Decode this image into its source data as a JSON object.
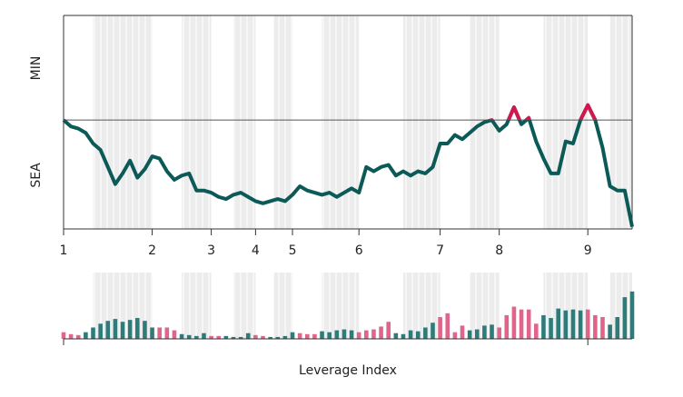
{
  "chart_data": {
    "type": "line",
    "ylabel_top": "MIN",
    "ylabel_bottom": "SEA",
    "xlabel": "Leverage Index",
    "line_color": "#0b5a57",
    "above_color": "#d0184e",
    "reference": 51,
    "xlim": [
      0,
      77
    ],
    "ylim": [
      0,
      100
    ],
    "xticks": [
      {
        "value": 0,
        "label": "1"
      },
      {
        "value": 12,
        "label": "2"
      },
      {
        "value": 20,
        "label": "3"
      },
      {
        "value": 26,
        "label": "4"
      },
      {
        "value": 31,
        "label": "5"
      },
      {
        "value": 40,
        "label": "6"
      },
      {
        "value": 51,
        "label": "7"
      },
      {
        "value": 59,
        "label": "8"
      },
      {
        "value": 71,
        "label": "9"
      }
    ],
    "bands": [
      [
        4,
        12
      ],
      [
        16,
        20
      ],
      [
        23,
        26
      ],
      [
        28.5,
        31
      ],
      [
        35,
        40
      ],
      [
        46,
        51
      ],
      [
        55,
        59
      ],
      [
        65,
        71
      ],
      [
        74,
        77
      ]
    ],
    "values": [
      51,
      48,
      47,
      45,
      40,
      37,
      29,
      21,
      26,
      32,
      24,
      28,
      34,
      33,
      27,
      23,
      25,
      26,
      18,
      18,
      17,
      15,
      14,
      16,
      17,
      15,
      13,
      12,
      13,
      14,
      13,
      16,
      20,
      18,
      17,
      16,
      17,
      15,
      17,
      19,
      17,
      29,
      27,
      29,
      30,
      25,
      27,
      25,
      27,
      26,
      29,
      40,
      40,
      44,
      42,
      45,
      48,
      50,
      51,
      46,
      49,
      57,
      49,
      52,
      41,
      33,
      26,
      26,
      41,
      40,
      51,
      58,
      51,
      38,
      20,
      18,
      18,
      1
    ],
    "bars": {
      "type": "bar",
      "ylim": [
        0,
        70
      ],
      "xticks": [
        0,
        71
      ],
      "values": [
        7,
        5,
        4,
        7,
        12,
        16,
        19,
        21,
        18,
        20,
        22,
        19,
        12,
        12,
        12,
        9,
        5,
        4,
        3,
        6,
        3,
        3,
        3,
        2,
        2,
        6,
        4,
        3,
        2,
        2,
        3,
        7,
        6,
        5,
        5,
        8,
        7,
        9,
        10,
        9,
        7,
        9,
        10,
        13,
        18,
        6,
        5,
        9,
        8,
        12,
        17,
        23,
        27,
        7,
        14,
        9,
        10,
        14,
        15,
        12,
        25,
        34,
        31,
        31,
        16,
        25,
        22,
        32,
        30,
        31,
        30,
        31,
        25,
        23,
        15,
        23,
        44,
        50
      ],
      "colors": [
        "#e0658a",
        "#e0658a",
        "#e0658a",
        "#2e7b7a",
        "#2e7b7a",
        "#2e7b7a",
        "#2e7b7a",
        "#2e7b7a",
        "#2e7b7a",
        "#2e7b7a",
        "#2e7b7a",
        "#2e7b7a",
        "#2e7b7a",
        "#e0658a",
        "#e0658a",
        "#e0658a",
        "#2e7b7a",
        "#2e7b7a",
        "#2e7b7a",
        "#2e7b7a",
        "#e0658a",
        "#e0658a",
        "#2e7b7a",
        "#2e7b7a",
        "#2e7b7a",
        "#2e7b7a",
        "#e0658a",
        "#e0658a",
        "#2e7b7a",
        "#2e7b7a",
        "#2e7b7a",
        "#2e7b7a",
        "#e0658a",
        "#e0658a",
        "#e0658a",
        "#2e7b7a",
        "#2e7b7a",
        "#2e7b7a",
        "#2e7b7a",
        "#2e7b7a",
        "#e0658a",
        "#e0658a",
        "#e0658a",
        "#e0658a",
        "#e0658a",
        "#2e7b7a",
        "#2e7b7a",
        "#2e7b7a",
        "#2e7b7a",
        "#2e7b7a",
        "#2e7b7a",
        "#e0658a",
        "#e0658a",
        "#e0658a",
        "#e0658a",
        "#2e7b7a",
        "#2e7b7a",
        "#2e7b7a",
        "#2e7b7a",
        "#e0658a",
        "#e0658a",
        "#e0658a",
        "#e0658a",
        "#e0658a",
        "#e0658a",
        "#2e7b7a",
        "#2e7b7a",
        "#2e7b7a",
        "#2e7b7a",
        "#2e7b7a",
        "#2e7b7a",
        "#e0658a",
        "#e0658a",
        "#e0658a",
        "#2e7b7a",
        "#2e7b7a",
        "#2e7b7a",
        "#2e7b7a"
      ]
    }
  }
}
